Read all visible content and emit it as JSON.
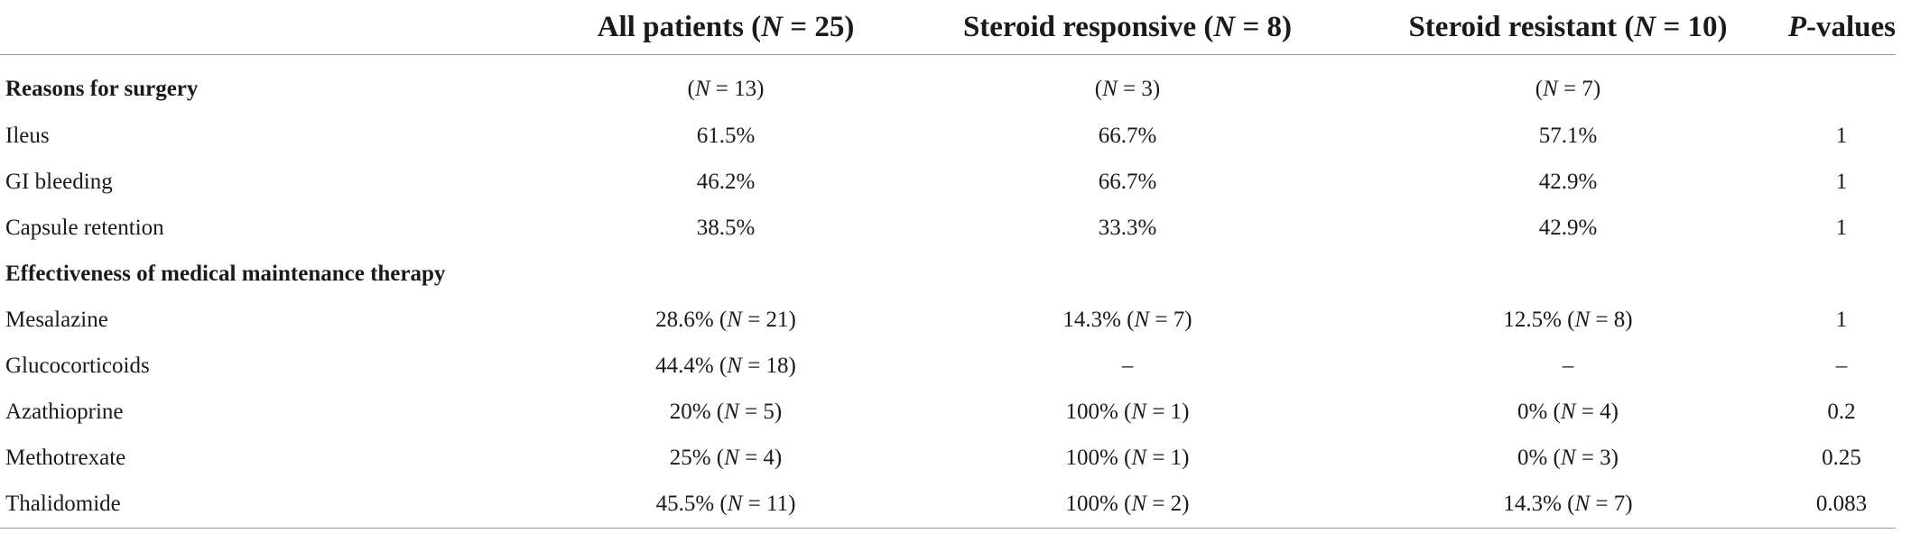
{
  "header": {
    "col_label": "",
    "col_all_prefix": "All patients (",
    "col_all_n": "N",
    "col_all_suffix": " = 25)",
    "col_resp_prefix": "Steroid responsive (",
    "col_resp_n": "N",
    "col_resp_suffix": " = 8)",
    "col_res_prefix": "Steroid resistant (",
    "col_res_n": "N",
    "col_res_suffix": " = 10)",
    "col_p_italic": "P",
    "col_p_suffix": "-values"
  },
  "rows": [
    {
      "label": "Reasons for surgery",
      "all": "(N = 13)",
      "resp": "(N = 3)",
      "res": "(N = 7)",
      "p": ""
    },
    {
      "label": "Ileus",
      "all": "61.5%",
      "resp": "66.7%",
      "res": "57.1%",
      "p": "1"
    },
    {
      "label": "GI bleeding",
      "all": "46.2%",
      "resp": "66.7%",
      "res": "42.9%",
      "p": "1"
    },
    {
      "label": "Capsule retention",
      "all": "38.5%",
      "resp": "33.3%",
      "res": "42.9%",
      "p": "1"
    },
    {
      "label": "Effectiveness of medical maintenance therapy",
      "all": "",
      "resp": "",
      "res": "",
      "p": ""
    },
    {
      "label": "Mesalazine",
      "all": "28.6% (N = 21)",
      "resp": "14.3% (N = 7)",
      "res": "12.5% (N = 8)",
      "p": "1"
    },
    {
      "label": "Glucocorticoids",
      "all": "44.4% (N = 18)",
      "resp": "–",
      "res": "–",
      "p": "–"
    },
    {
      "label": "Azathioprine",
      "all": "20% (N = 5)",
      "resp": "100% (N = 1)",
      "res": "0% (N = 4)",
      "p": "0.2"
    },
    {
      "label": "Methotrexate",
      "all": "25% (N = 4)",
      "resp": "100% (N = 1)",
      "res": "0% (N = 3)",
      "p": "0.25"
    },
    {
      "label": "Thalidomide",
      "all": "45.5% (N = 11)",
      "resp": "100% (N = 2)",
      "res": "14.3% (N = 7)",
      "p": "0.083"
    }
  ]
}
